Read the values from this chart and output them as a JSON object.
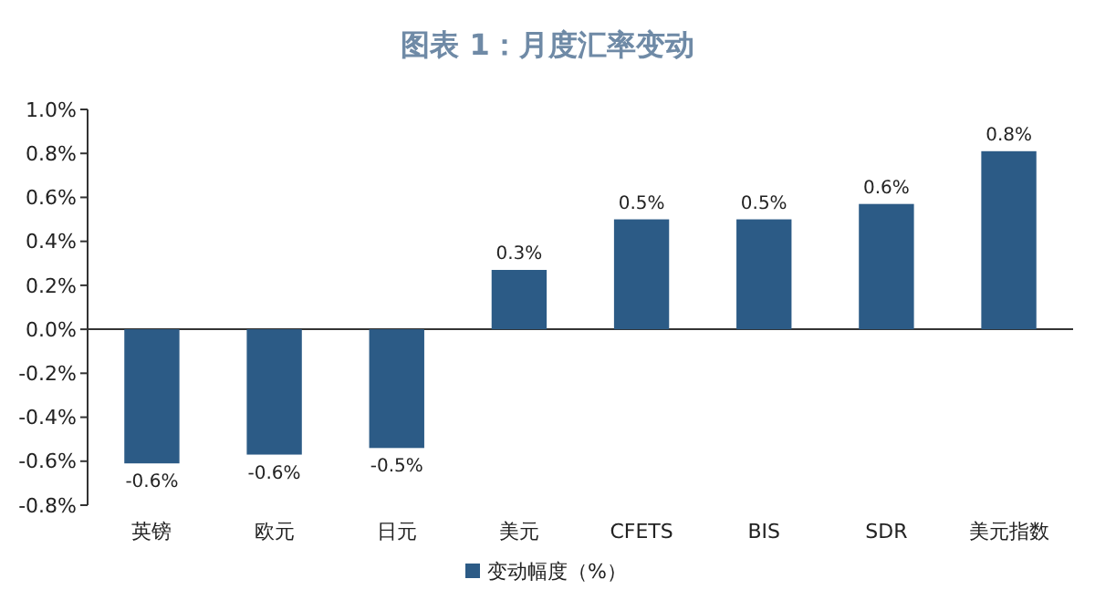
{
  "chart_data": {
    "type": "bar",
    "title": "图表 1：月度汇率变动",
    "categories": [
      "英镑",
      "欧元",
      "日元",
      "美元",
      "CFETS",
      "BIS",
      "SDR",
      "美元指数"
    ],
    "series": [
      {
        "name": "变动幅度（%）",
        "color": "#2c5b86",
        "values": [
          -0.61,
          -0.57,
          -0.54,
          0.27,
          0.5,
          0.5,
          0.57,
          0.81
        ],
        "value_labels": [
          "-0.6%",
          "-0.6%",
          "-0.5%",
          "0.3%",
          "0.5%",
          "0.5%",
          "0.6%",
          "0.8%"
        ]
      }
    ],
    "ylim": [
      -0.8,
      1.0
    ],
    "yticks": [
      {
        "value": -0.8,
        "label": "-0.8%"
      },
      {
        "value": -0.6,
        "label": "-0.6%"
      },
      {
        "value": -0.4,
        "label": "-0.4%"
      },
      {
        "value": -0.2,
        "label": "-0.2%"
      },
      {
        "value": 0,
        "label": "0.0%"
      },
      {
        "value": 0.2,
        "label": "0.2%"
      },
      {
        "value": 0.4,
        "label": "0.4%"
      },
      {
        "value": 0.6,
        "label": "0.6%"
      },
      {
        "value": 0.8,
        "label": "0.8%"
      },
      {
        "value": 1.0,
        "label": "1.0%"
      }
    ],
    "legend": "bottom"
  }
}
